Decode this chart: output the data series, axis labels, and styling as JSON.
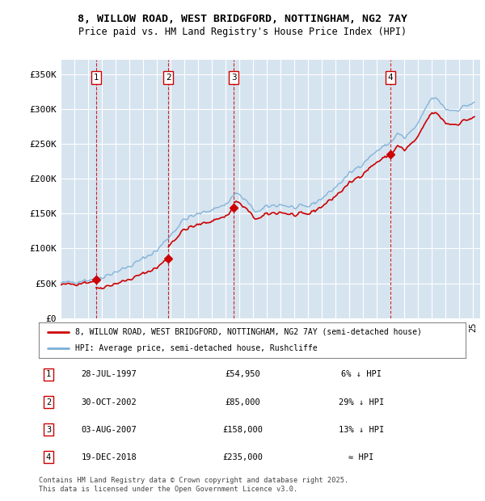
{
  "title_line1": "8, WILLOW ROAD, WEST BRIDGFORD, NOTTINGHAM, NG2 7AY",
  "title_line2": "Price paid vs. HM Land Registry's House Price Index (HPI)",
  "ylabel_ticks": [
    "£0",
    "£50K",
    "£100K",
    "£150K",
    "£200K",
    "£250K",
    "£300K",
    "£350K"
  ],
  "ytick_values": [
    0,
    50000,
    100000,
    150000,
    200000,
    250000,
    300000,
    350000
  ],
  "ylim": [
    0,
    370000
  ],
  "xlim_start": 1995.0,
  "xlim_end": 2025.5,
  "bg_color": "#d6e4f0",
  "grid_color": "#ffffff",
  "sales": [
    {
      "date_num": 1997.57,
      "price": 54950,
      "label": "1"
    },
    {
      "date_num": 2002.83,
      "price": 85000,
      "label": "2"
    },
    {
      "date_num": 2007.59,
      "price": 158000,
      "label": "3"
    },
    {
      "date_num": 2018.97,
      "price": 235000,
      "label": "4"
    }
  ],
  "sale_dates_str": [
    "28-JUL-1997",
    "30-OCT-2002",
    "03-AUG-2007",
    "19-DEC-2018"
  ],
  "sale_prices_str": [
    "£54,950",
    "£85,000",
    "£158,000",
    "£235,000"
  ],
  "sale_notes": [
    "6% ↓ HPI",
    "29% ↓ HPI",
    "13% ↓ HPI",
    "≈ HPI"
  ],
  "vline_color": "#cc0000",
  "marker_box_color": "#cc0000",
  "line_sold_color": "#cc0000",
  "line_hpi_color": "#7aaed6",
  "legend_label_sold": "8, WILLOW ROAD, WEST BRIDGFORD, NOTTINGHAM, NG2 7AY (semi-detached house)",
  "legend_label_hpi": "HPI: Average price, semi-detached house, Rushcliffe",
  "footer_text": "Contains HM Land Registry data © Crown copyright and database right 2025.\nThis data is licensed under the Open Government Licence v3.0."
}
